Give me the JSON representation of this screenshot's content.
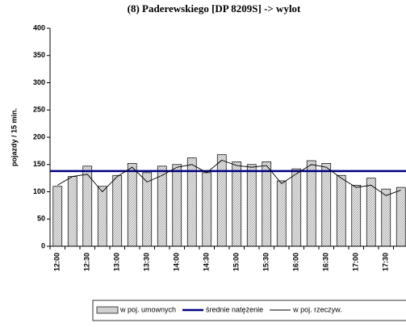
{
  "chart_data": {
    "type": "bar-line",
    "title": "(8) Paderewskiego [DP 8209S] -> wylot",
    "y_label": "pojazdy / 15 min.",
    "categories": [
      "12:00",
      null,
      "12:30",
      null,
      "13:00",
      null,
      "13:30",
      null,
      "14:00",
      null,
      "14:30",
      null,
      "15:00",
      null,
      "15:30",
      null,
      "16:00",
      null,
      "16:30",
      null,
      "17:00",
      null,
      "17:30",
      null
    ],
    "series": [
      {
        "name": "w poj. umownych",
        "type": "bar",
        "color": "#c8c8c8",
        "values": [
          110,
          128,
          147,
          110,
          130,
          152,
          135,
          147,
          150,
          162,
          135,
          168,
          155,
          150,
          155,
          120,
          142,
          157,
          152,
          130,
          112,
          125,
          105,
          108
        ]
      },
      {
        "name": "średnie natężenie",
        "type": "hline",
        "color": "#000080",
        "value": 138
      },
      {
        "name": "w poj. rzeczyw.",
        "type": "line",
        "color": "#000000",
        "values": [
          112,
          128,
          132,
          100,
          128,
          145,
          118,
          130,
          145,
          150,
          135,
          158,
          148,
          145,
          148,
          115,
          133,
          150,
          145,
          125,
          108,
          112,
          93,
          103
        ]
      }
    ],
    "ylim": [
      0,
      400
    ],
    "yticks": [
      0,
      50,
      100,
      150,
      200,
      250,
      300,
      350,
      400
    ],
    "grid": false
  }
}
